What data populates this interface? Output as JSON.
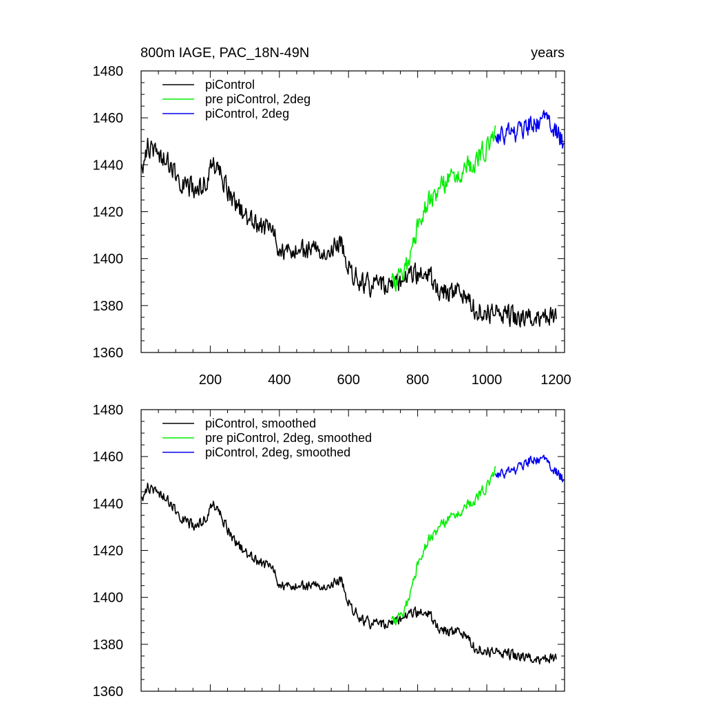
{
  "figure": {
    "title_left": "800m IAGE, PAC_18N-49N",
    "title_right": "years"
  },
  "chart_data": [
    {
      "type": "line",
      "title": "800m IAGE, PAC_18N-49N",
      "xlabel": "years",
      "ylabel": "",
      "xlim": [
        0,
        1225
      ],
      "ylim": [
        1360,
        1480
      ],
      "yticks": [
        1360,
        1380,
        1400,
        1420,
        1440,
        1460,
        1480
      ],
      "xticks": [
        200,
        400,
        600,
        800,
        1000,
        1200
      ],
      "xticks_labeled": true,
      "noise_seed": 11,
      "legend": {
        "position": "top-left",
        "entries": [
          "piControl",
          "pre piControl, 2deg",
          "piControl, 2deg"
        ]
      },
      "series": [
        {
          "name": "piControl",
          "color": "#000000",
          "x_range": [
            1,
            1201
          ],
          "noise": 2.6,
          "trend": [
            [
              0,
              1438
            ],
            [
              20,
              1448
            ],
            [
              60,
              1444
            ],
            [
              100,
              1436
            ],
            [
              150,
              1429
            ],
            [
              180,
              1432
            ],
            [
              210,
              1441
            ],
            [
              230,
              1436
            ],
            [
              270,
              1424
            ],
            [
              320,
              1416
            ],
            [
              380,
              1411
            ],
            [
              400,
              1403
            ],
            [
              450,
              1402
            ],
            [
              500,
              1404
            ],
            [
              580,
              1406
            ],
            [
              600,
              1397
            ],
            [
              640,
              1389
            ],
            [
              690,
              1388
            ],
            [
              720,
              1389
            ],
            [
              760,
              1390
            ],
            [
              800,
              1394
            ],
            [
              830,
              1393
            ],
            [
              870,
              1386
            ],
            [
              940,
              1384
            ],
            [
              960,
              1379
            ],
            [
              1000,
              1377
            ],
            [
              1100,
              1375
            ],
            [
              1150,
              1374
            ],
            [
              1201,
              1375
            ]
          ]
        },
        {
          "name": "pre piControl, 2deg",
          "color": "#00ee00",
          "x_range": [
            725,
            1025
          ],
          "noise": 2.6,
          "trend": [
            [
              725,
              1390
            ],
            [
              750,
              1391
            ],
            [
              760,
              1393
            ],
            [
              780,
              1403
            ],
            [
              800,
              1414
            ],
            [
              830,
              1424
            ],
            [
              860,
              1430
            ],
            [
              900,
              1434
            ],
            [
              950,
              1440
            ],
            [
              1000,
              1447
            ],
            [
              1025,
              1455
            ]
          ]
        },
        {
          "name": "piControl, 2deg",
          "color": "#0000ee",
          "x_range": [
            1025,
            1225
          ],
          "noise": 2.6,
          "trend": [
            [
              1025,
              1451
            ],
            [
              1060,
              1453
            ],
            [
              1100,
              1455
            ],
            [
              1130,
              1458
            ],
            [
              1160,
              1459
            ],
            [
              1185,
              1456
            ],
            [
              1210,
              1452
            ],
            [
              1225,
              1447
            ]
          ]
        }
      ]
    },
    {
      "type": "line",
      "title": "",
      "xlabel": "",
      "ylabel": "",
      "xlim": [
        0,
        1225
      ],
      "ylim": [
        1360,
        1480
      ],
      "yticks": [
        1360,
        1380,
        1400,
        1420,
        1440,
        1460,
        1480
      ],
      "xticks": [
        200,
        400,
        600,
        800,
        1000,
        1200
      ],
      "xticks_labeled": false,
      "noise_seed": 11,
      "legend": {
        "position": "top-left",
        "entries": [
          "piControl, smoothed",
          "pre piControl, 2deg, smoothed",
          "piControl, 2deg, smoothed"
        ]
      },
      "series": [
        {
          "name": "piControl, smoothed",
          "color": "#000000",
          "x_range": [
            1,
            1201
          ],
          "noise": 1.3,
          "trend": [
            [
              0,
              1442
            ],
            [
              20,
              1447
            ],
            [
              60,
              1444
            ],
            [
              100,
              1437
            ],
            [
              150,
              1430
            ],
            [
              180,
              1433
            ],
            [
              210,
              1440
            ],
            [
              230,
              1435
            ],
            [
              270,
              1424
            ],
            [
              320,
              1417
            ],
            [
              380,
              1412
            ],
            [
              400,
              1405
            ],
            [
              450,
              1404
            ],
            [
              500,
              1405
            ],
            [
              580,
              1407
            ],
            [
              600,
              1398
            ],
            [
              640,
              1390
            ],
            [
              690,
              1388
            ],
            [
              720,
              1389
            ],
            [
              760,
              1391
            ],
            [
              800,
              1394
            ],
            [
              830,
              1393
            ],
            [
              870,
              1386
            ],
            [
              940,
              1384
            ],
            [
              960,
              1379
            ],
            [
              1000,
              1377
            ],
            [
              1100,
              1375
            ],
            [
              1150,
              1373
            ],
            [
              1201,
              1374
            ]
          ]
        },
        {
          "name": "pre piControl, 2deg, smoothed",
          "color": "#00ee00",
          "x_range": [
            725,
            1025
          ],
          "noise": 1.3,
          "trend": [
            [
              725,
              1390
            ],
            [
              750,
              1391
            ],
            [
              760,
              1393
            ],
            [
              780,
              1403
            ],
            [
              800,
              1414
            ],
            [
              830,
              1424
            ],
            [
              860,
              1430
            ],
            [
              900,
              1434
            ],
            [
              950,
              1440
            ],
            [
              1000,
              1447
            ],
            [
              1025,
              1455
            ]
          ]
        },
        {
          "name": "piControl, 2deg, smoothed",
          "color": "#0000ee",
          "x_range": [
            1025,
            1225
          ],
          "noise": 1.3,
          "trend": [
            [
              1025,
              1452
            ],
            [
              1060,
              1453
            ],
            [
              1100,
              1456
            ],
            [
              1130,
              1459
            ],
            [
              1160,
              1459
            ],
            [
              1185,
              1455
            ],
            [
              1210,
              1452
            ],
            [
              1225,
              1449
            ]
          ]
        }
      ]
    }
  ]
}
